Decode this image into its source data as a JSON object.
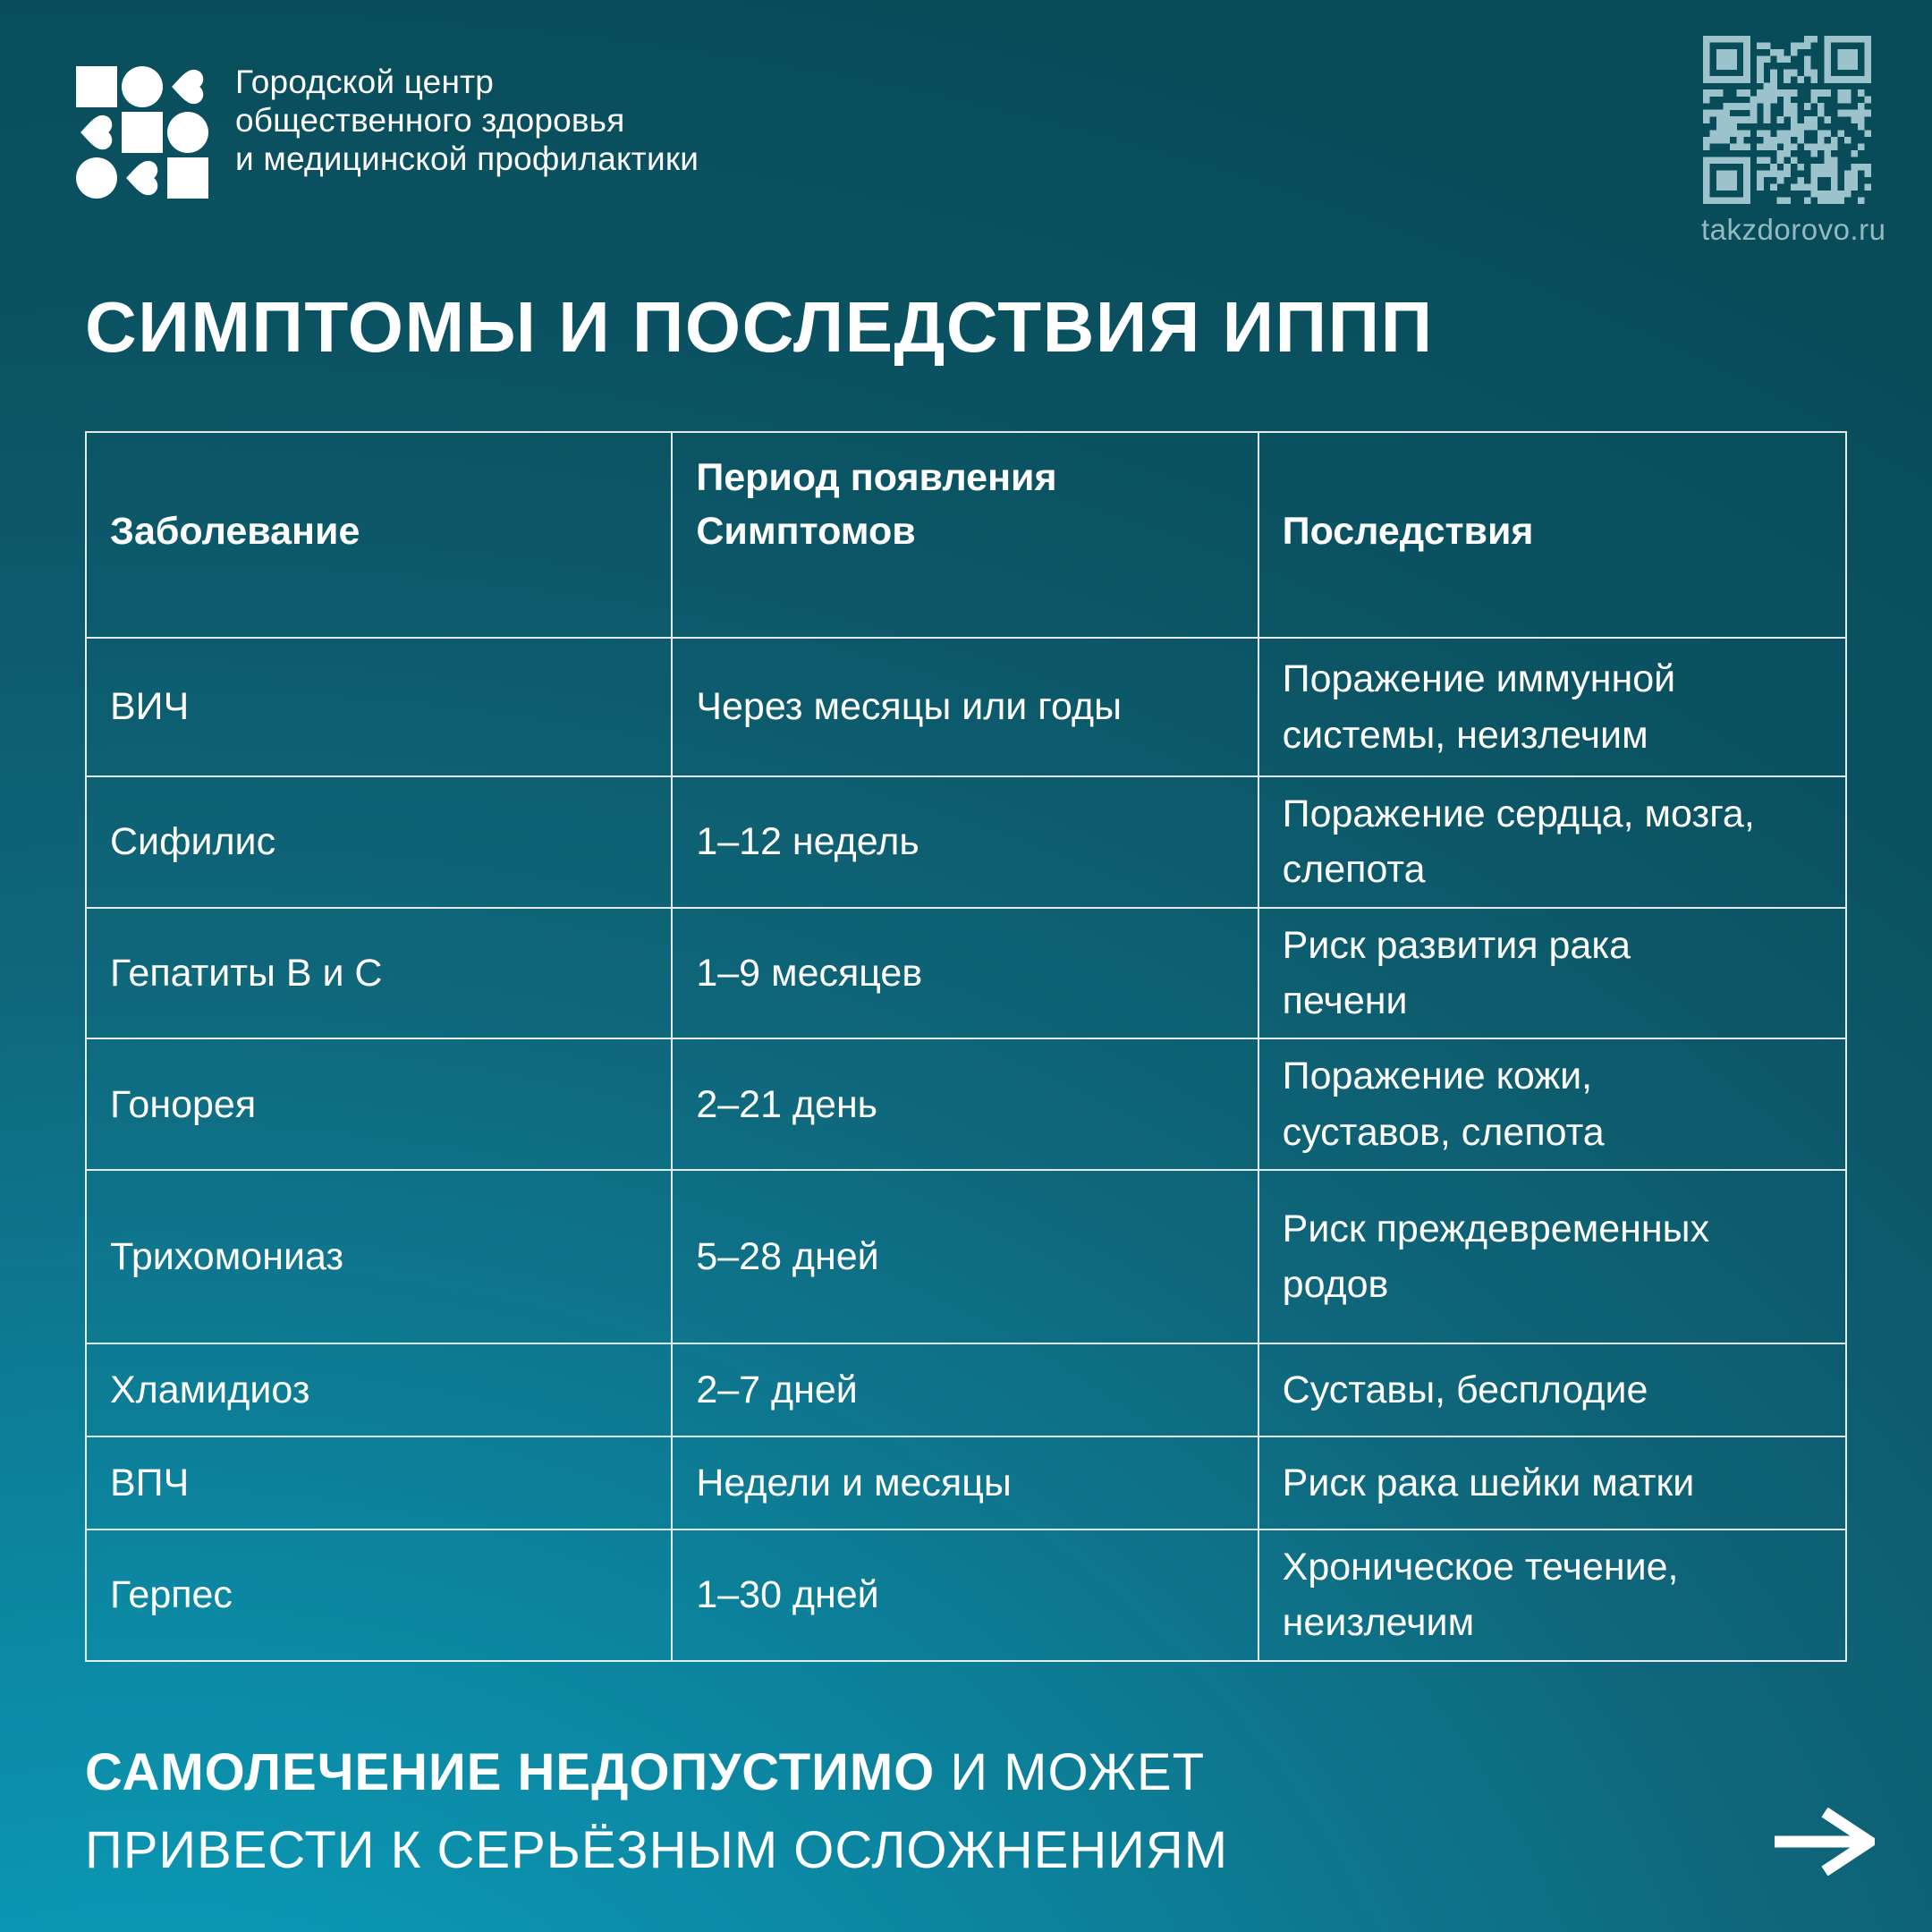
{
  "theme": {
    "background_top": "#084b59",
    "background_bottom": "#0aa6c4",
    "text_color": "#ffffff",
    "qr_color": "#9cc3cb",
    "table_line_color": "#ffffff"
  },
  "header": {
    "org_name": "Городской центр\nобщественного здоровья\nи медицинской профилактики",
    "qr_label": "takzdorovo.ru"
  },
  "title": "СИМПТОМЫ И ПОСЛЕДСТВИЯ ИППП",
  "table": {
    "columns": [
      "Заболевание",
      "Период появления\nСимптомов",
      "Последствия"
    ],
    "rows": [
      {
        "disease": "ВИЧ",
        "period": "Через месяцы или годы",
        "consequence": "Поражение иммунной\nсистемы, неизлечим"
      },
      {
        "disease": "Сифилис",
        "period": "1–12 недель",
        "consequence": "Поражение сердца, мозга,\nслепота"
      },
      {
        "disease": "Гепатиты В и С",
        "period": "1–9 месяцев",
        "consequence": "Риск развития рака\nпечени"
      },
      {
        "disease": "Гонорея",
        "period": "2–21 день",
        "consequence": "Поражение кожи,\nсуставов, слепота"
      },
      {
        "disease": "Трихомониаз",
        "period": "5–28 дней",
        "consequence": "Риск преждевременных\nродов"
      },
      {
        "disease": "Хламидиоз",
        "period": "2–7 дней",
        "consequence": "Суставы, бесплодие"
      },
      {
        "disease": "ВПЧ",
        "period": "Недели и месяцы",
        "consequence": "Риск рака шейки матки"
      },
      {
        "disease": "Герпес",
        "period": "1–30 дней",
        "consequence": "Хроническое течение,\nнеизлечим"
      }
    ]
  },
  "footer": {
    "warning_bold": "САМОЛЕЧЕНИЕ НЕДОПУСТИМО",
    "warning_rest": " И МОЖЕТ\nПРИВЕСТИ К СЕРЬЁЗНЫМ ОСЛОЖНЕНИЯМ"
  }
}
